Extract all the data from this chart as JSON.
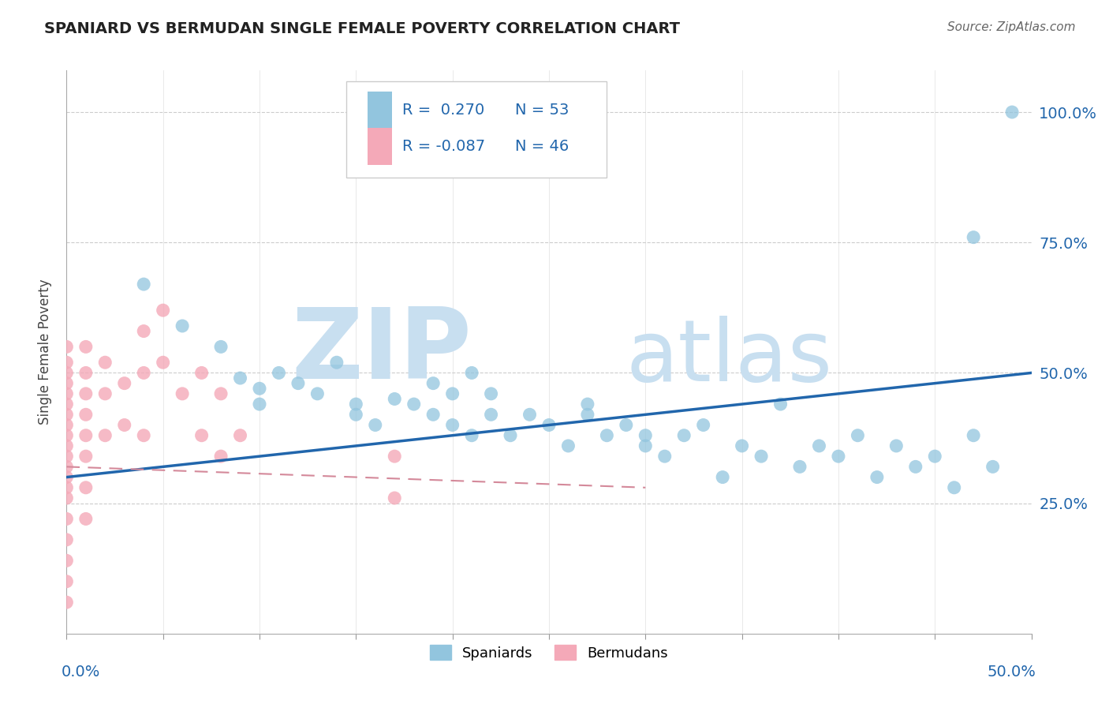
{
  "title": "SPANIARD VS BERMUDAN SINGLE FEMALE POVERTY CORRELATION CHART",
  "source": "Source: ZipAtlas.com",
  "ylabel": "Single Female Poverty",
  "right_yticklabels": [
    "",
    "25.0%",
    "50.0%",
    "75.0%",
    "100.0%"
  ],
  "xlim": [
    0.0,
    0.5
  ],
  "ylim": [
    0.0,
    1.08
  ],
  "legend_r1": "R =  0.270",
  "legend_n1": "N = 53",
  "legend_r2": "R = -0.087",
  "legend_n2": "N = 46",
  "blue_color": "#92c5de",
  "pink_color": "#f4a9b8",
  "trend_blue": "#2166ac",
  "trend_pink": "#d4899a",
  "watermark_zip": "ZIP",
  "watermark_atlas": "atlas",
  "watermark_color": "#c8dff0",
  "blue_dots_x": [
    0.04,
    0.06,
    0.08,
    0.09,
    0.1,
    0.1,
    0.11,
    0.12,
    0.13,
    0.14,
    0.15,
    0.15,
    0.16,
    0.17,
    0.18,
    0.19,
    0.19,
    0.2,
    0.2,
    0.21,
    0.21,
    0.22,
    0.22,
    0.23,
    0.24,
    0.25,
    0.26,
    0.27,
    0.27,
    0.28,
    0.29,
    0.3,
    0.3,
    0.31,
    0.32,
    0.33,
    0.34,
    0.35,
    0.36,
    0.37,
    0.38,
    0.39,
    0.4,
    0.41,
    0.42,
    0.43,
    0.44,
    0.45,
    0.46,
    0.47,
    0.47,
    0.48,
    0.49
  ],
  "blue_dots_y": [
    0.67,
    0.59,
    0.55,
    0.49,
    0.47,
    0.44,
    0.5,
    0.48,
    0.46,
    0.52,
    0.44,
    0.42,
    0.4,
    0.45,
    0.44,
    0.42,
    0.48,
    0.4,
    0.46,
    0.38,
    0.5,
    0.42,
    0.46,
    0.38,
    0.42,
    0.4,
    0.36,
    0.44,
    0.42,
    0.38,
    0.4,
    0.36,
    0.38,
    0.34,
    0.38,
    0.4,
    0.3,
    0.36,
    0.34,
    0.44,
    0.32,
    0.36,
    0.34,
    0.38,
    0.3,
    0.36,
    0.32,
    0.34,
    0.28,
    0.38,
    0.76,
    0.32,
    1.0
  ],
  "pink_dots_x": [
    0.0,
    0.0,
    0.0,
    0.0,
    0.0,
    0.0,
    0.0,
    0.0,
    0.0,
    0.0,
    0.0,
    0.0,
    0.0,
    0.0,
    0.0,
    0.0,
    0.0,
    0.0,
    0.0,
    0.0,
    0.01,
    0.01,
    0.01,
    0.01,
    0.01,
    0.01,
    0.01,
    0.01,
    0.02,
    0.02,
    0.02,
    0.03,
    0.03,
    0.04,
    0.04,
    0.04,
    0.05,
    0.05,
    0.06,
    0.07,
    0.07,
    0.08,
    0.08,
    0.09,
    0.17,
    0.17
  ],
  "pink_dots_y": [
    0.55,
    0.52,
    0.5,
    0.48,
    0.46,
    0.44,
    0.42,
    0.4,
    0.38,
    0.36,
    0.34,
    0.32,
    0.3,
    0.28,
    0.26,
    0.22,
    0.18,
    0.14,
    0.1,
    0.06,
    0.55,
    0.5,
    0.46,
    0.42,
    0.38,
    0.34,
    0.28,
    0.22,
    0.52,
    0.46,
    0.38,
    0.48,
    0.4,
    0.58,
    0.5,
    0.38,
    0.62,
    0.52,
    0.46,
    0.5,
    0.38,
    0.46,
    0.34,
    0.38,
    0.34,
    0.26
  ],
  "blue_trendline_x": [
    0.0,
    0.5
  ],
  "blue_trendline_y": [
    0.3,
    0.5
  ],
  "pink_trendline_x": [
    0.0,
    0.3
  ],
  "pink_trendline_y": [
    0.32,
    0.28
  ]
}
